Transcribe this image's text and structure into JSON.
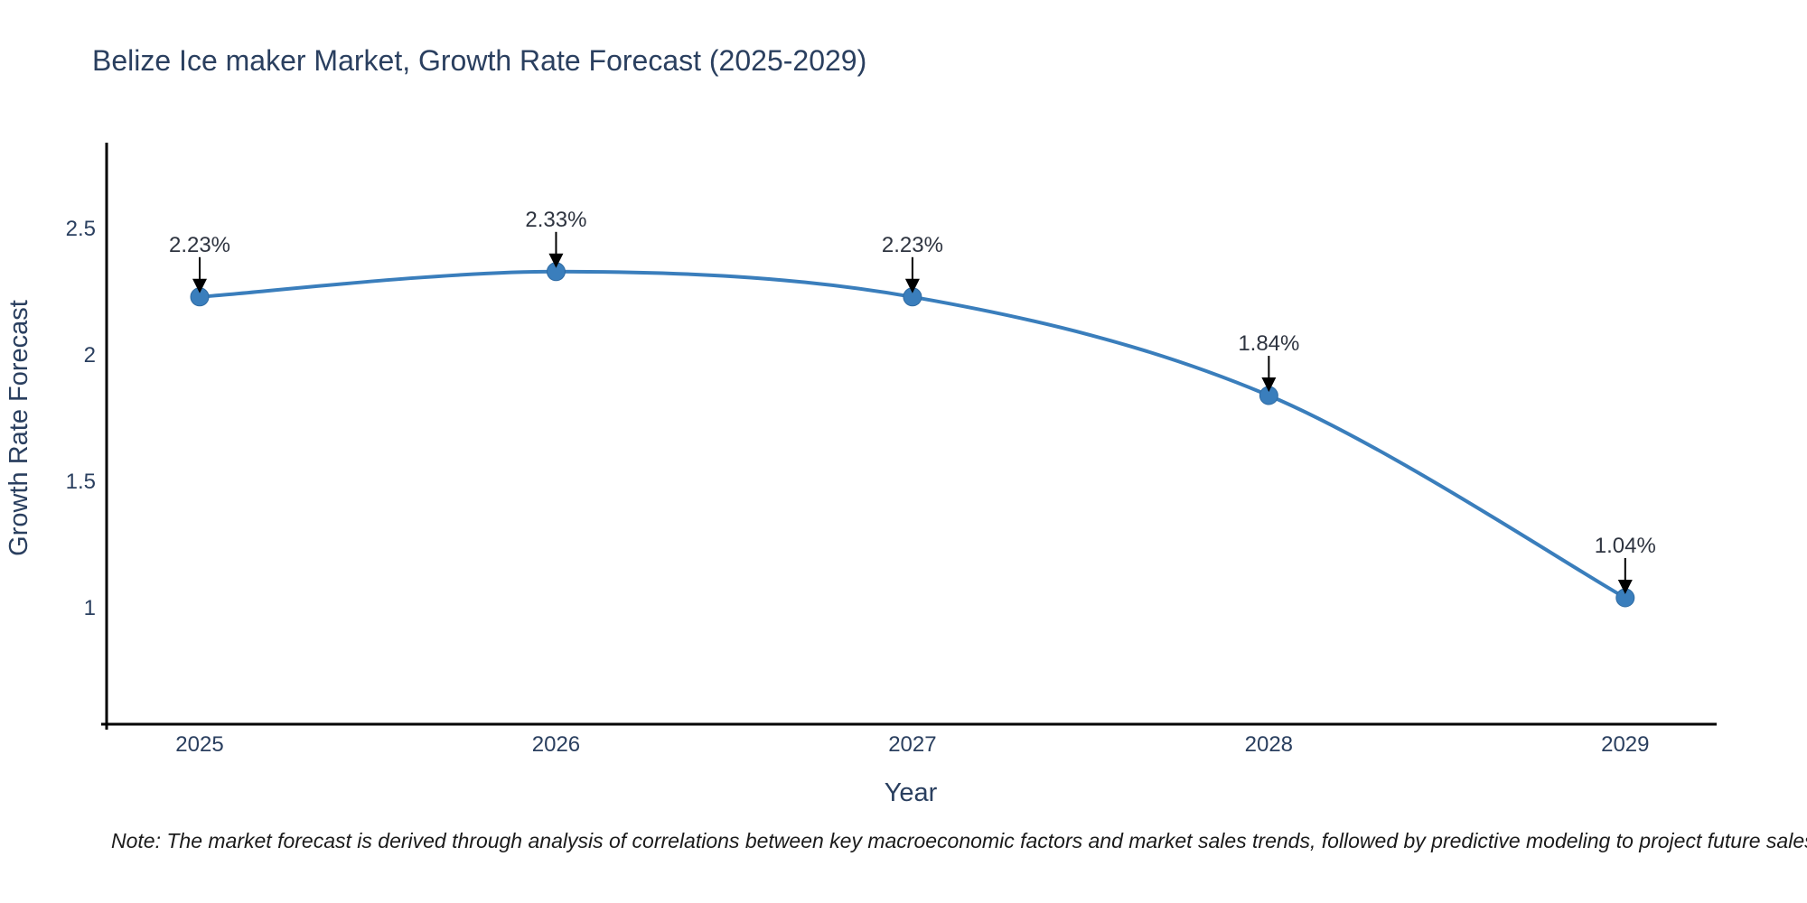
{
  "title": "Belize Ice maker Market, Growth Rate Forecast (2025-2029)",
  "note": "Note: The market forecast is derived through analysis of correlations between key macroeconomic factors and market sales trends, followed by predictive modeling to project future sales",
  "colors": {
    "line": "#3a7ebc",
    "marker_fill": "#3a7ebc",
    "marker_edge": "#2f6ba3",
    "axis_line": "#000000",
    "arrow": "#000000",
    "title_text": "#2a3f5f",
    "tick_text": "#2a3f5f",
    "annotation_text": "#2e3440"
  },
  "chart_data": {
    "type": "line",
    "title": "Belize Ice maker Market, Growth Rate Forecast (2025-2029)",
    "categories": [
      "2025",
      "2026",
      "2027",
      "2028",
      "2029"
    ],
    "series": [
      {
        "name": "Growth Rate Forecast",
        "values": [
          2.23,
          2.33,
          2.23,
          1.84,
          1.04
        ]
      }
    ],
    "point_labels": [
      "2.23%",
      "2.33%",
      "2.23%",
      "1.84%",
      "1.04%"
    ],
    "xlabel": "Year",
    "ylabel": "Growth Rate Forecast",
    "yticks": [
      1,
      1.5,
      2,
      2.5
    ],
    "ylim": [
      0.54,
      2.84
    ],
    "grid": false,
    "legend_position": "none",
    "line_shape": "spline"
  }
}
